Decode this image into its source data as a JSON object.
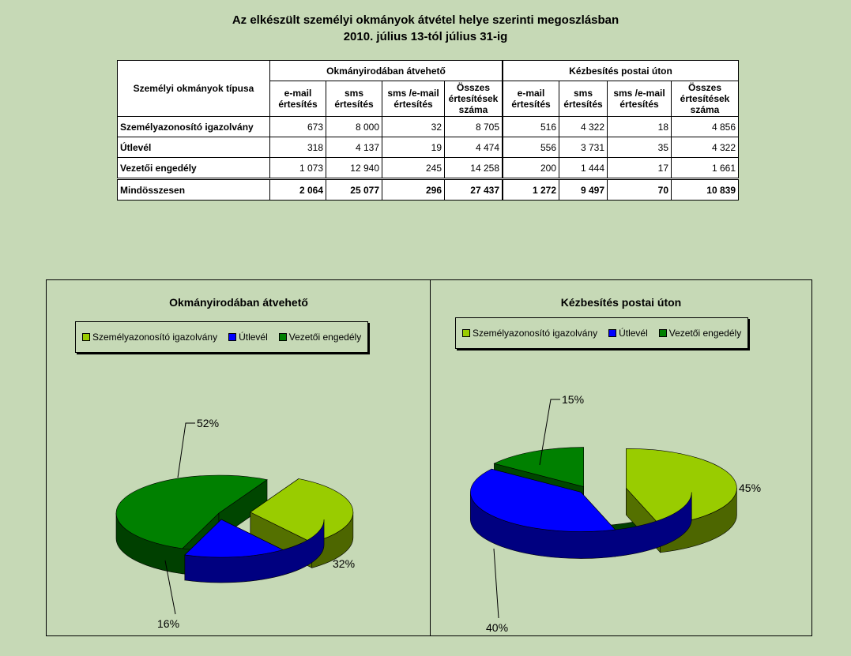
{
  "page": {
    "title_line1": "Az elkészült személyi okmányok átvétel helye szerinti megoszlásban",
    "title_line2": "2010. július 13-tól július 31-ig"
  },
  "table": {
    "corner_header": "Személyi okmányok típusa",
    "group1": "Okmányirodában átvehető",
    "group2": "Kézbesítés postai úton",
    "subheaders": [
      "e-mail értesítés",
      "sms értesítés",
      "sms /e-mail értesítés",
      "Összes értesítések száma",
      "e-mail értesítés",
      "sms értesítés",
      "sms /e-mail értesítés",
      "Összes értesítések száma"
    ],
    "rows": [
      {
        "label": "Személyazonosító igazolvány",
        "values": [
          "673",
          "8 000",
          "32",
          "8 705",
          "516",
          "4 322",
          "18",
          "4 856"
        ]
      },
      {
        "label": "Útlevél",
        "values": [
          "318",
          "4 137",
          "19",
          "4 474",
          "556",
          "3 731",
          "35",
          "4 322"
        ]
      },
      {
        "label": "Vezetői engedély",
        "values": [
          "1 073",
          "12 940",
          "245",
          "14 258",
          "200",
          "1 444",
          "17",
          "1 661"
        ]
      },
      {
        "label": "Mindösszesen",
        "values": [
          "2 064",
          "25 077",
          "296",
          "27 437",
          "1 272",
          "9 497",
          "70",
          "10 839"
        ]
      }
    ]
  },
  "colors": {
    "background": "#c6d9b6",
    "szemelyi": "#99cc00",
    "utlevel": "#0000ff",
    "vezetoi": "#008000"
  },
  "legend": [
    "Személyazonosító igazolvány",
    "Útlevél",
    "Vezetői engedély"
  ],
  "chart_data": [
    {
      "type": "pie",
      "title": "Okmányirodában átvehető",
      "categories": [
        "Személyazonosító igazolvány",
        "Útlevél",
        "Vezetői engedély"
      ],
      "values": [
        32,
        16,
        52
      ],
      "labels": [
        "32%",
        "16%",
        "52%"
      ],
      "legend": "top"
    },
    {
      "type": "pie",
      "title": "Kézbesítés postai úton",
      "categories": [
        "Személyazonosító igazolvány",
        "Útlevél",
        "Vezetői engedély"
      ],
      "values": [
        45,
        40,
        15
      ],
      "labels": [
        "45%",
        "40%",
        "15%"
      ],
      "legend": "top"
    }
  ]
}
